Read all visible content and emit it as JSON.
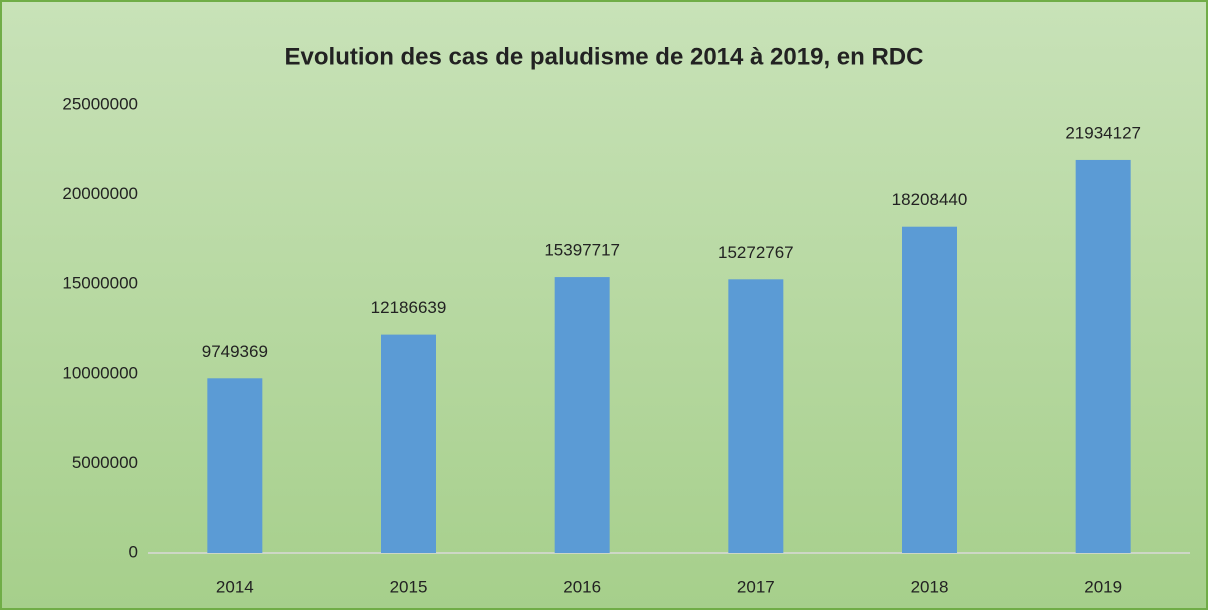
{
  "chart_data": {
    "type": "bar",
    "title": "Evolution des cas de paludisme de 2014 à 2019, en RDC",
    "categories": [
      "2014",
      "2015",
      "2016",
      "2017",
      "2018",
      "2019"
    ],
    "values": [
      9749369,
      12186639,
      15397717,
      15272767,
      18208440,
      21934127
    ],
    "color": "#5b9bd5",
    "ylim": [
      0,
      25000000
    ],
    "yticks": [
      0,
      5000000,
      10000000,
      15000000,
      20000000,
      25000000
    ],
    "grid": false,
    "data_labels": true
  }
}
